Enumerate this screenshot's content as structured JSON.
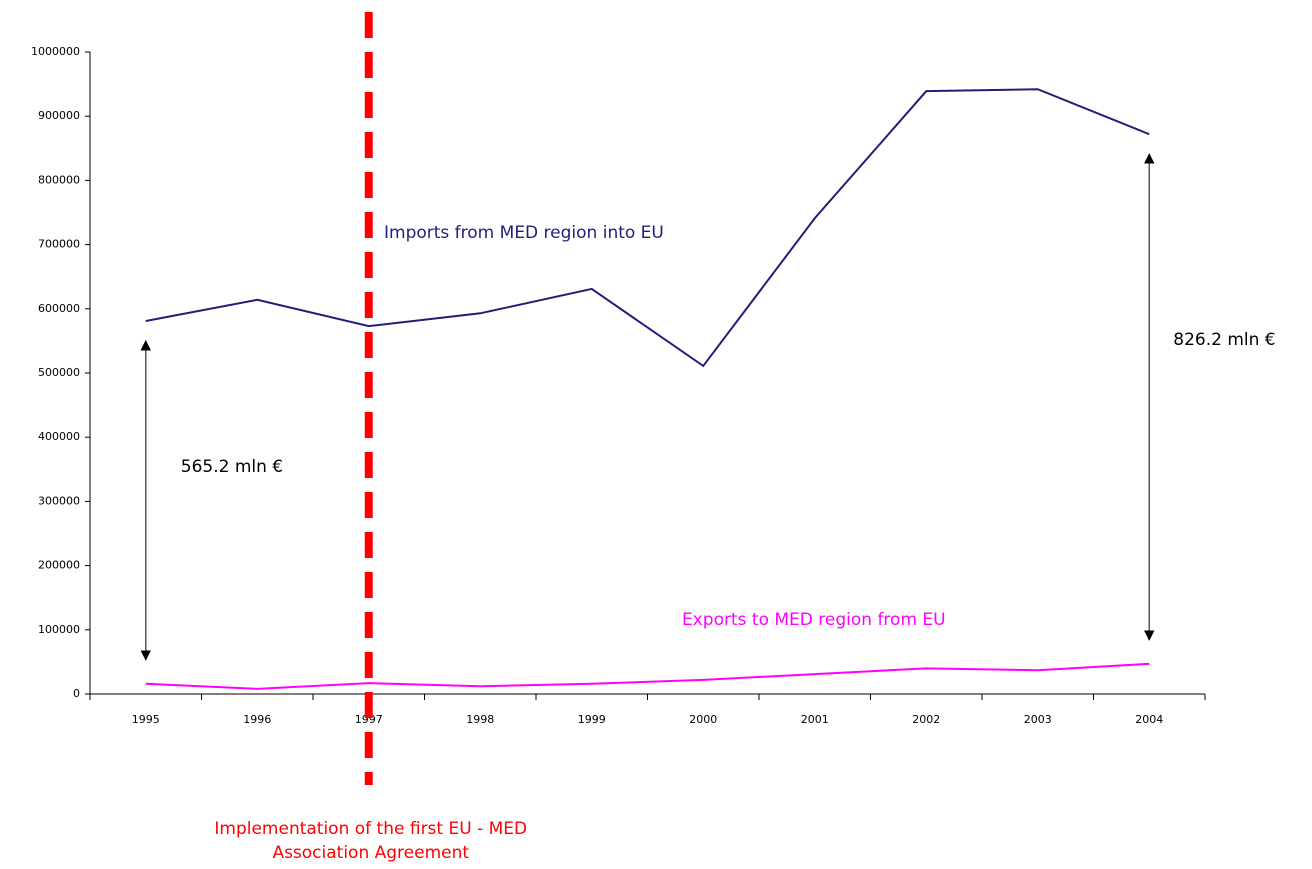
{
  "chart_data": {
    "type": "line",
    "categories": [
      "1995",
      "1996",
      "1997",
      "1998",
      "1999",
      "2000",
      "2001",
      "2002",
      "2003",
      "2004"
    ],
    "series": [
      {
        "name": "Imports from MED region into EU",
        "color": "#1f1f7a",
        "values": [
          581000,
          614000,
          573000,
          593000,
          631000,
          511000,
          741000,
          939000,
          942000,
          872000
        ]
      },
      {
        "name": "Exports to MED region from EU",
        "color": "#ff00ff",
        "values": [
          16000,
          8000,
          17000,
          12000,
          16000,
          22000,
          31000,
          40000,
          37000,
          47000
        ]
      }
    ],
    "ylim": [
      0,
      1000000
    ],
    "yticks": [
      0,
      100000,
      200000,
      300000,
      400000,
      500000,
      600000,
      700000,
      800000,
      900000,
      1000000
    ],
    "reference_line": {
      "category": "1997",
      "color": "#ff0000",
      "label": [
        "Implementation of the first EU - MED",
        "Association Agreement"
      ]
    },
    "annotations": [
      {
        "text": "565.2 mln €",
        "category": "1995"
      },
      {
        "text": "826.2 mln €",
        "category": "2004"
      }
    ]
  }
}
